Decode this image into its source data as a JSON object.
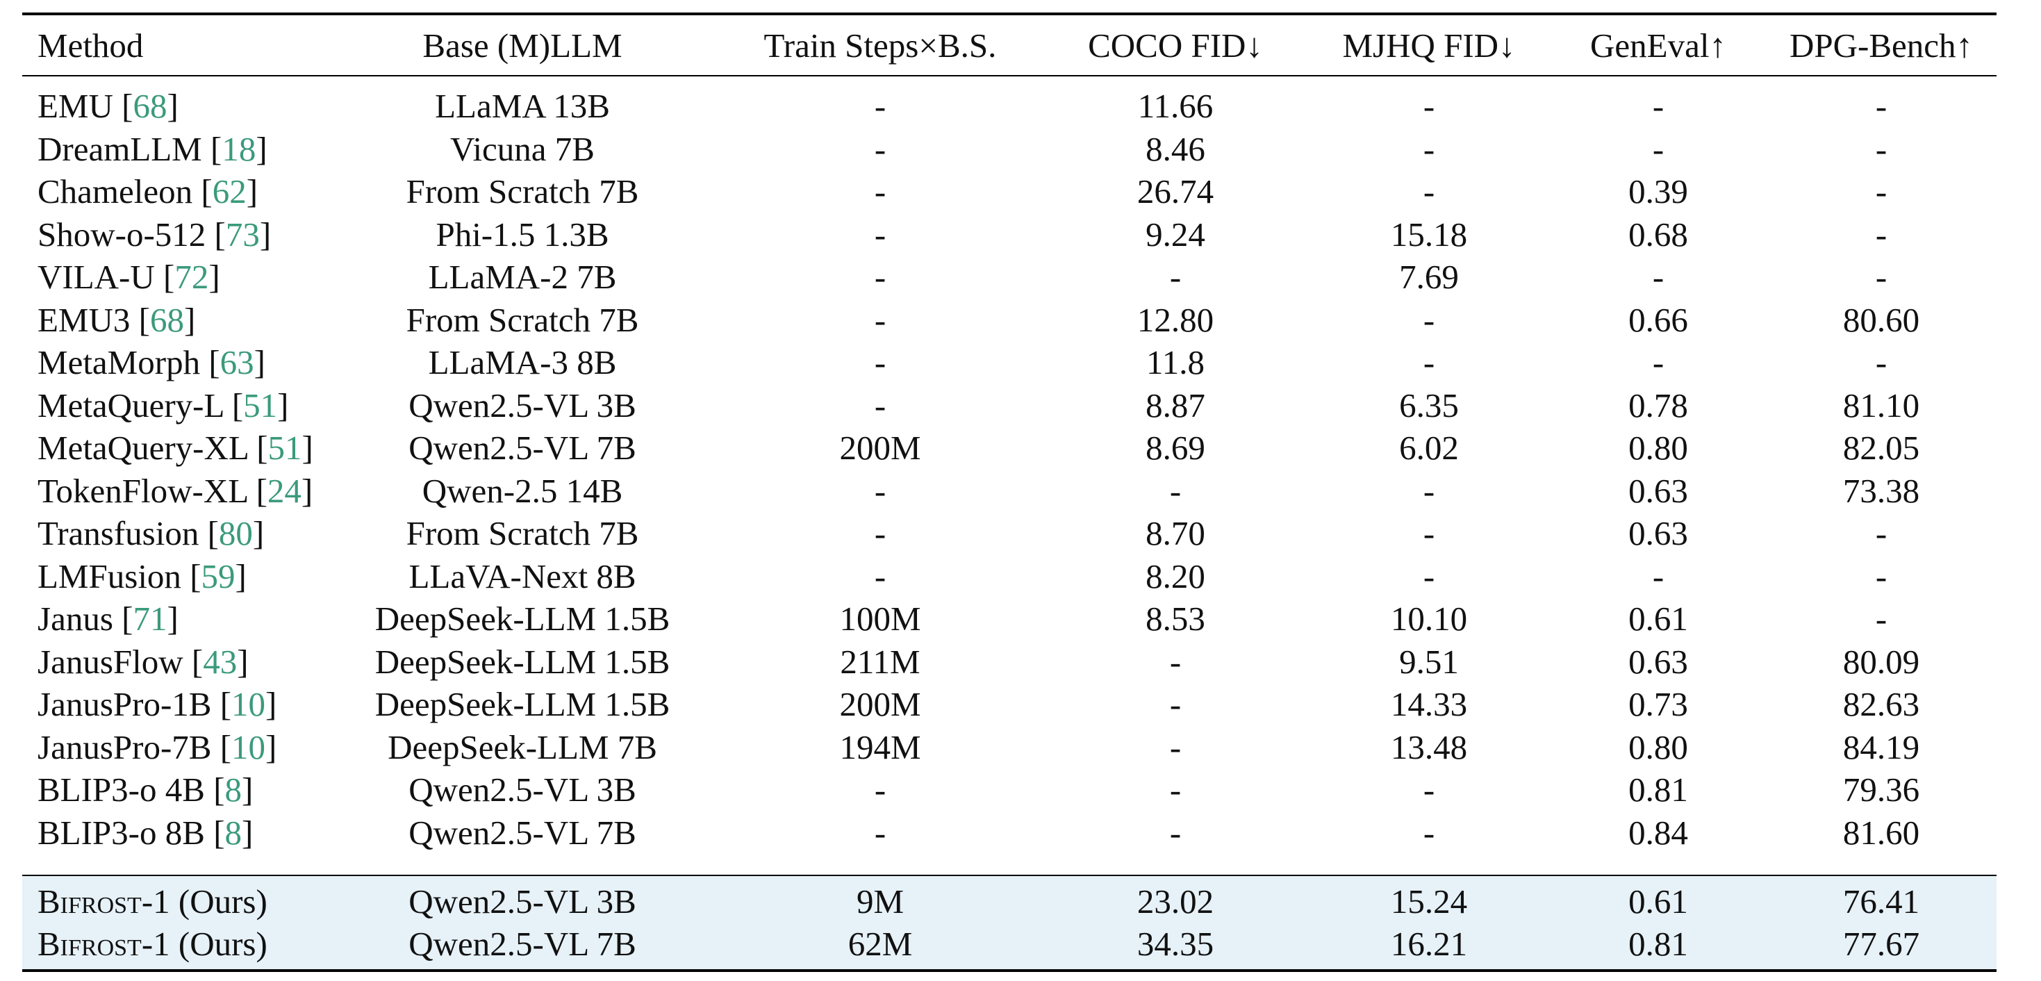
{
  "columns": [
    "Method",
    "Base (M)LLM",
    "Train Steps×B.S.",
    "COCO FID↓",
    "MJHQ FID↓",
    "GenEval↑",
    "DPG-Bench↑"
  ],
  "rows": [
    {
      "method": "EMU",
      "cite": "68",
      "base": "LLaMA 13B",
      "steps": "-",
      "coco": "11.66",
      "mjhq": "-",
      "geneval": "-",
      "dpg": "-"
    },
    {
      "method": "DreamLLM",
      "cite": "18",
      "base": "Vicuna 7B",
      "steps": "-",
      "coco": "8.46",
      "mjhq": "-",
      "geneval": "-",
      "dpg": "-"
    },
    {
      "method": "Chameleon",
      "cite": "62",
      "base": "From Scratch 7B",
      "steps": "-",
      "coco": "26.74",
      "mjhq": "-",
      "geneval": "0.39",
      "dpg": "-"
    },
    {
      "method": "Show-o-512",
      "cite": "73",
      "base": "Phi-1.5 1.3B",
      "steps": "-",
      "coco": "9.24",
      "mjhq": "15.18",
      "geneval": "0.68",
      "dpg": "-"
    },
    {
      "method": "VILA-U",
      "cite": "72",
      "base": "LLaMA-2 7B",
      "steps": "-",
      "coco": "-",
      "mjhq": "7.69",
      "geneval": "-",
      "dpg": "-"
    },
    {
      "method": "EMU3",
      "cite": "68",
      "base": "From Scratch 7B",
      "steps": "-",
      "coco": "12.80",
      "mjhq": "-",
      "geneval": "0.66",
      "dpg": "80.60"
    },
    {
      "method": "MetaMorph",
      "cite": "63",
      "base": "LLaMA-3 8B",
      "steps": "-",
      "coco": "11.8",
      "mjhq": "-",
      "geneval": "-",
      "dpg": "-"
    },
    {
      "method": "MetaQuery-L",
      "cite": "51",
      "base": "Qwen2.5-VL 3B",
      "steps": "-",
      "coco": "8.87",
      "mjhq": "6.35",
      "geneval": "0.78",
      "dpg": "81.10"
    },
    {
      "method": "MetaQuery-XL",
      "cite": "51",
      "base": "Qwen2.5-VL 7B",
      "steps": "200M",
      "coco": "8.69",
      "mjhq": "6.02",
      "geneval": "0.80",
      "dpg": "82.05"
    },
    {
      "method": "TokenFlow-XL",
      "cite": "24",
      "base": "Qwen-2.5 14B",
      "steps": "-",
      "coco": "-",
      "mjhq": "-",
      "geneval": "0.63",
      "dpg": "73.38"
    },
    {
      "method": "Transfusion",
      "cite": "80",
      "base": "From Scratch 7B",
      "steps": "-",
      "coco": "8.70",
      "mjhq": "-",
      "geneval": "0.63",
      "dpg": "-"
    },
    {
      "method": "LMFusion",
      "cite": "59",
      "base": "LLaVA-Next 8B",
      "steps": "-",
      "coco": "8.20",
      "mjhq": "-",
      "geneval": "-",
      "dpg": "-"
    },
    {
      "method": "Janus",
      "cite": "71",
      "base": "DeepSeek-LLM 1.5B",
      "steps": "100M",
      "coco": "8.53",
      "mjhq": "10.10",
      "geneval": "0.61",
      "dpg": "-"
    },
    {
      "method": "JanusFlow",
      "cite": "43",
      "base": "DeepSeek-LLM 1.5B",
      "steps": "211M",
      "coco": "-",
      "mjhq": "9.51",
      "geneval": "0.63",
      "dpg": "80.09"
    },
    {
      "method": "JanusPro-1B",
      "cite": "10",
      "base": "DeepSeek-LLM 1.5B",
      "steps": "200M",
      "coco": "-",
      "mjhq": "14.33",
      "geneval": "0.73",
      "dpg": "82.63"
    },
    {
      "method": "JanusPro-7B",
      "cite": "10",
      "base": "DeepSeek-LLM 7B",
      "steps": "194M",
      "coco": "-",
      "mjhq": "13.48",
      "geneval": "0.80",
      "dpg": "84.19"
    },
    {
      "method": "BLIP3-o 4B",
      "cite": "8",
      "base": "Qwen2.5-VL 3B",
      "steps": "-",
      "coco": "-",
      "mjhq": "-",
      "geneval": "0.81",
      "dpg": "79.36"
    },
    {
      "method": "BLIP3-o 8B",
      "cite": "8",
      "base": "Qwen2.5-VL 7B",
      "steps": "-",
      "coco": "-",
      "mjhq": "-",
      "geneval": "0.84",
      "dpg": "81.60"
    }
  ],
  "ours": [
    {
      "method": "Bifrost-1",
      "suffix": "(Ours)",
      "base": "Qwen2.5-VL 3B",
      "steps": "9M",
      "coco": "23.02",
      "mjhq": "15.24",
      "geneval": "0.61",
      "dpg": "76.41"
    },
    {
      "method": "Bifrost-1",
      "suffix": "(Ours)",
      "base": "Qwen2.5-VL 7B",
      "steps": "62M",
      "coco": "34.35",
      "mjhq": "16.21",
      "geneval": "0.81",
      "dpg": "77.67"
    }
  ],
  "colors": {
    "citation": "#3b9a7c",
    "highlight": "#e6f1f8"
  }
}
